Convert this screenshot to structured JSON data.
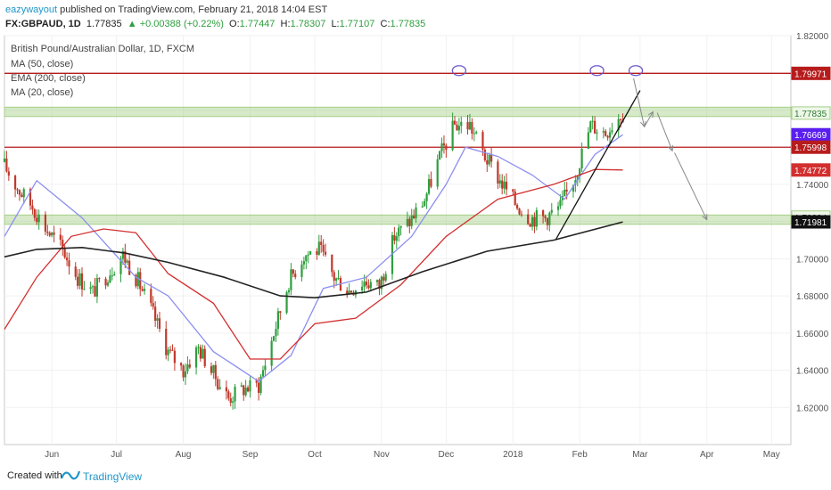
{
  "header": {
    "author": "eazywayout",
    "published": " published on TradingView.com, February 21, 2018 14:04 EST",
    "symbol": "FX:GBPAUD, 1D",
    "price": "1.77835",
    "change": "▲ +0.00388 (+0.22%)",
    "o_label": "O:",
    "o_value": "1.77447",
    "h_label": "H:",
    "h_value": "1.78307",
    "l_label": "L:",
    "l_value": "1.77107",
    "c_label": "C:",
    "c_value": "1.77835"
  },
  "footer": {
    "created_with": "Created with",
    "brand": "TradingView"
  },
  "colors": {
    "bull": "#2e9e3e",
    "bear": "#c0392b",
    "ma50": "#8c8ff0",
    "ema200": "#222222",
    "ma20": "#d32f2f",
    "resistance": "#b71c1c",
    "zone": "#a5cf87",
    "accent": "#2196c9",
    "ma50_tag": "#5a1ef0"
  },
  "chart_data": {
    "type": "candlestick",
    "title": "British Pound/Australian Dollar, 1D, FXCM",
    "legend": [
      "MA (50, close)",
      "EMA (200, close)",
      "MA (20, close)"
    ],
    "ylim": [
      1.6,
      1.82
    ],
    "y_ticks": [
      "1.82000",
      "1.80000",
      "1.78000",
      "1.76000",
      "1.74000",
      "1.72000",
      "1.70000",
      "1.68000",
      "1.66000",
      "1.64000",
      "1.62000"
    ],
    "x_ticks": [
      "Jun",
      "Jul",
      "Aug",
      "Sep",
      "Oct",
      "Nov",
      "Dec",
      "2018",
      "Feb",
      "Mar",
      "Apr",
      "May"
    ],
    "price_tags": [
      {
        "value": "1.79971",
        "kind": "resistance"
      },
      {
        "value": "1.77835",
        "kind": "last"
      },
      {
        "value": "1.76669",
        "kind": "ma50"
      },
      {
        "value": "1.75998",
        "kind": "resistance"
      },
      {
        "value": "1.74772",
        "kind": "ma20"
      },
      {
        "value": "1.72234",
        "kind": "support"
      },
      {
        "value": "1.71981",
        "kind": "ema200"
      }
    ],
    "horizontal_lines": [
      1.79971,
      1.75998
    ],
    "zones": [
      [
        1.7765,
        1.7815
      ],
      [
        1.7185,
        1.7235
      ]
    ],
    "price_path_weekly": [
      [
        "2017-05-10",
        1.752
      ],
      [
        "2017-05-17",
        1.738
      ],
      [
        "2017-05-24",
        1.728
      ],
      [
        "2017-05-31",
        1.715
      ],
      [
        "2017-06-07",
        1.705
      ],
      [
        "2017-06-14",
        1.69
      ],
      [
        "2017-06-21",
        1.682
      ],
      [
        "2017-06-28",
        1.692
      ],
      [
        "2017-07-05",
        1.702
      ],
      [
        "2017-07-12",
        1.688
      ],
      [
        "2017-07-19",
        1.67
      ],
      [
        "2017-07-26",
        1.65
      ],
      [
        "2017-08-02",
        1.64
      ],
      [
        "2017-08-09",
        1.652
      ],
      [
        "2017-08-16",
        1.638
      ],
      [
        "2017-08-23",
        1.625
      ],
      [
        "2017-08-30",
        1.63
      ],
      [
        "2017-09-06",
        1.632
      ],
      [
        "2017-09-13",
        1.66
      ],
      [
        "2017-09-20",
        1.688
      ],
      [
        "2017-09-27",
        1.702
      ],
      [
        "2017-10-04",
        1.705
      ],
      [
        "2017-10-11",
        1.69
      ],
      [
        "2017-10-18",
        1.683
      ],
      [
        "2017-10-25",
        1.688
      ],
      [
        "2017-11-01",
        1.685
      ],
      [
        "2017-11-08",
        1.712
      ],
      [
        "2017-11-15",
        1.72
      ],
      [
        "2017-11-22",
        1.732
      ],
      [
        "2017-11-29",
        1.755
      ],
      [
        "2017-12-06",
        1.772
      ],
      [
        "2017-12-13",
        1.772
      ],
      [
        "2017-12-20",
        1.755
      ],
      [
        "2017-12-27",
        1.742
      ],
      [
        "2018-01-03",
        1.73
      ],
      [
        "2018-01-10",
        1.722
      ],
      [
        "2018-01-17",
        1.722
      ],
      [
        "2018-01-24",
        1.728
      ],
      [
        "2018-01-31",
        1.745
      ],
      [
        "2018-02-07",
        1.772
      ],
      [
        "2018-02-14",
        1.768
      ],
      [
        "2018-02-21",
        1.778
      ]
    ],
    "ma50_path": [
      [
        "2017-05-10",
        1.712
      ],
      [
        "2017-05-25",
        1.742
      ],
      [
        "2017-06-15",
        1.722
      ],
      [
        "2017-07-10",
        1.69
      ],
      [
        "2017-07-25",
        1.68
      ],
      [
        "2017-08-15",
        1.65
      ],
      [
        "2017-09-05",
        1.634
      ],
      [
        "2017-09-20",
        1.648
      ],
      [
        "2017-10-05",
        1.684
      ],
      [
        "2017-10-25",
        1.69
      ],
      [
        "2017-11-15",
        1.712
      ],
      [
        "2017-12-01",
        1.74
      ],
      [
        "2017-12-10",
        1.76
      ],
      [
        "2017-12-25",
        1.755
      ],
      [
        "2018-01-10",
        1.745
      ],
      [
        "2018-01-25",
        1.732
      ],
      [
        "2018-02-08",
        1.756
      ],
      [
        "2018-02-21",
        1.7667
      ]
    ],
    "ma20_path": [
      [
        "2017-05-10",
        1.662
      ],
      [
        "2017-05-25",
        1.69
      ],
      [
        "2017-06-10",
        1.712
      ],
      [
        "2017-06-25",
        1.716
      ],
      [
        "2017-07-10",
        1.714
      ],
      [
        "2017-07-25",
        1.692
      ],
      [
        "2017-08-15",
        1.676
      ],
      [
        "2017-09-01",
        1.646
      ],
      [
        "2017-09-15",
        1.646
      ],
      [
        "2017-10-01",
        1.665
      ],
      [
        "2017-10-20",
        1.668
      ],
      [
        "2017-11-10",
        1.686
      ],
      [
        "2017-12-01",
        1.712
      ],
      [
        "2017-12-25",
        1.732
      ],
      [
        "2018-01-20",
        1.74
      ],
      [
        "2018-02-08",
        1.748
      ],
      [
        "2018-02-21",
        1.7477
      ]
    ],
    "ema200_path": [
      [
        "2017-05-10",
        1.701
      ],
      [
        "2017-05-25",
        1.705
      ],
      [
        "2017-06-15",
        1.706
      ],
      [
        "2017-07-05",
        1.703
      ],
      [
        "2017-07-25",
        1.698
      ],
      [
        "2017-08-20",
        1.69
      ],
      [
        "2017-09-15",
        1.68
      ],
      [
        "2017-10-01",
        1.679
      ],
      [
        "2017-10-25",
        1.682
      ],
      [
        "2017-11-20",
        1.693
      ],
      [
        "2017-12-20",
        1.704
      ],
      [
        "2018-01-20",
        1.71
      ],
      [
        "2018-02-21",
        1.7198
      ]
    ],
    "trendline": [
      [
        "2018-01-21",
        1.7105
      ],
      [
        "2018-03-01",
        1.7905
      ]
    ],
    "projection_arrows": [
      [
        [
          "2018-02-26",
          1.797
        ],
        [
          "2018-03-03",
          1.771
        ]
      ],
      [
        [
          "2018-03-03",
          1.771
        ],
        [
          "2018-03-07",
          1.779
        ]
      ],
      [
        [
          "2018-03-09",
          1.7785
        ],
        [
          "2018-03-16",
          1.758
        ]
      ],
      [
        [
          "2018-03-17",
          1.757
        ],
        [
          "2018-04-01",
          1.721
        ]
      ]
    ],
    "top_markers": [
      [
        "2017-12-07",
        1.8012
      ],
      [
        "2018-02-09",
        1.8012
      ],
      [
        "2018-02-27",
        1.8012
      ]
    ]
  }
}
